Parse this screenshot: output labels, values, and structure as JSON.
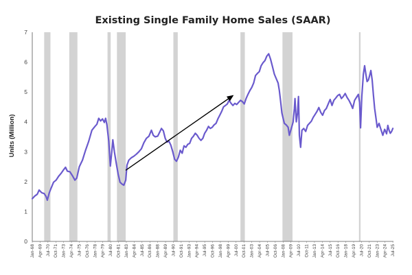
{
  "chart_data": {
    "type": "line",
    "title": "Existing Single Family Home Sales (SAAR)",
    "xlabel": "",
    "ylabel": "Units (Million)",
    "ylim": [
      0,
      7
    ],
    "yticks": [
      "0",
      "1",
      "2",
      "3",
      "4",
      "5",
      "6",
      "7"
    ],
    "xlim": [
      1968.0,
      2025.6
    ],
    "xticks": [
      {
        "label": "Jan-68",
        "t": 1968.0
      },
      {
        "label": "Apr-69",
        "t": 1969.25
      },
      {
        "label": "Jul-70",
        "t": 1970.5
      },
      {
        "label": "Oct-71",
        "t": 1971.75
      },
      {
        "label": "Jan-73",
        "t": 1973.0
      },
      {
        "label": "Apr-74",
        "t": 1974.25
      },
      {
        "label": "Jul-75",
        "t": 1975.5
      },
      {
        "label": "Oct-76",
        "t": 1976.75
      },
      {
        "label": "Jan-78",
        "t": 1978.0
      },
      {
        "label": "Apr-79",
        "t": 1979.25
      },
      {
        "label": "Jul-80",
        "t": 1980.5
      },
      {
        "label": "Oct-81",
        "t": 1981.75
      },
      {
        "label": "Jan-83",
        "t": 1983.0
      },
      {
        "label": "Apr-84",
        "t": 1984.25
      },
      {
        "label": "Jul-85",
        "t": 1985.5
      },
      {
        "label": "Oct-86",
        "t": 1986.75
      },
      {
        "label": "Jan-88",
        "t": 1988.0
      },
      {
        "label": "Apr-89",
        "t": 1989.25
      },
      {
        "label": "Jul-90",
        "t": 1990.5
      },
      {
        "label": "Oct-91",
        "t": 1991.75
      },
      {
        "label": "Jan-93",
        "t": 1993.0
      },
      {
        "label": "Apr-94",
        "t": 1994.25
      },
      {
        "label": "Jul-95",
        "t": 1995.5
      },
      {
        "label": "Oct-96",
        "t": 1996.75
      },
      {
        "label": "Jan-98",
        "t": 1998.0
      },
      {
        "label": "Apr-99",
        "t": 1999.25
      },
      {
        "label": "Jul-00",
        "t": 2000.5
      },
      {
        "label": "Oct-01",
        "t": 2001.75
      },
      {
        "label": "Jan-03",
        "t": 2003.0
      },
      {
        "label": "Apr-04",
        "t": 2004.25
      },
      {
        "label": "Jul-05",
        "t": 2005.5
      },
      {
        "label": "Oct-06",
        "t": 2006.75
      },
      {
        "label": "Jan-08",
        "t": 2008.0
      },
      {
        "label": "Apr-09",
        "t": 2009.25
      },
      {
        "label": "Jul-10",
        "t": 2010.5
      },
      {
        "label": "Oct-11",
        "t": 2011.75
      },
      {
        "label": "Jan-13",
        "t": 2013.0
      },
      {
        "label": "Apr-14",
        "t": 2014.25
      },
      {
        "label": "Jul-15",
        "t": 2015.5
      },
      {
        "label": "Oct-16",
        "t": 2016.75
      },
      {
        "label": "Jan-18",
        "t": 2018.0
      },
      {
        "label": "Apr-19",
        "t": 2019.25
      },
      {
        "label": "Jul-20",
        "t": 2020.5
      },
      {
        "label": "Oct-21",
        "t": 2021.75
      },
      {
        "label": "Jan-23",
        "t": 2023.0
      },
      {
        "label": "Apr-24",
        "t": 2024.25
      },
      {
        "label": "Jul-25",
        "t": 2025.5
      }
    ],
    "recessions": [
      {
        "start": 1969.9,
        "end": 1970.9
      },
      {
        "start": 1973.9,
        "end": 1975.2
      },
      {
        "start": 1980.0,
        "end": 1980.5
      },
      {
        "start": 1981.5,
        "end": 1982.9
      },
      {
        "start": 1990.5,
        "end": 1991.2
      },
      {
        "start": 2001.2,
        "end": 2001.9
      },
      {
        "start": 2007.9,
        "end": 2009.5
      },
      {
        "start": 2020.1,
        "end": 2020.35
      }
    ],
    "series": [
      {
        "name": "Existing Single Family Home Sales (SAAR)",
        "color": "#6a5acd",
        "points": [
          [
            1968.0,
            1.43
          ],
          [
            1968.4,
            1.52
          ],
          [
            1968.8,
            1.58
          ],
          [
            1969.1,
            1.72
          ],
          [
            1969.5,
            1.63
          ],
          [
            1969.9,
            1.6
          ],
          [
            1970.2,
            1.5
          ],
          [
            1970.4,
            1.38
          ],
          [
            1970.7,
            1.62
          ],
          [
            1971.0,
            1.78
          ],
          [
            1971.4,
            1.98
          ],
          [
            1971.8,
            2.05
          ],
          [
            1972.2,
            2.18
          ],
          [
            1972.6,
            2.28
          ],
          [
            1973.0,
            2.4
          ],
          [
            1973.3,
            2.48
          ],
          [
            1973.6,
            2.35
          ],
          [
            1974.0,
            2.33
          ],
          [
            1974.4,
            2.2
          ],
          [
            1974.8,
            2.05
          ],
          [
            1975.1,
            2.12
          ],
          [
            1975.5,
            2.5
          ],
          [
            1976.0,
            2.72
          ],
          [
            1976.5,
            3.05
          ],
          [
            1977.0,
            3.35
          ],
          [
            1977.5,
            3.72
          ],
          [
            1978.0,
            3.85
          ],
          [
            1978.3,
            3.92
          ],
          [
            1978.6,
            4.12
          ],
          [
            1978.9,
            4.03
          ],
          [
            1979.2,
            4.1
          ],
          [
            1979.5,
            3.98
          ],
          [
            1979.7,
            4.12
          ],
          [
            1979.9,
            3.9
          ],
          [
            1980.2,
            3.35
          ],
          [
            1980.45,
            2.52
          ],
          [
            1980.7,
            3.05
          ],
          [
            1980.85,
            3.4
          ],
          [
            1981.1,
            3.0
          ],
          [
            1981.4,
            2.6
          ],
          [
            1981.7,
            2.25
          ],
          [
            1982.0,
            1.98
          ],
          [
            1982.3,
            1.92
          ],
          [
            1982.6,
            1.88
          ],
          [
            1982.9,
            2.05
          ],
          [
            1983.1,
            2.55
          ],
          [
            1983.4,
            2.72
          ],
          [
            1983.8,
            2.8
          ],
          [
            1984.2,
            2.85
          ],
          [
            1984.6,
            2.92
          ],
          [
            1985.0,
            3.0
          ],
          [
            1985.4,
            3.1
          ],
          [
            1985.8,
            3.3
          ],
          [
            1986.2,
            3.45
          ],
          [
            1986.6,
            3.52
          ],
          [
            1987.0,
            3.72
          ],
          [
            1987.3,
            3.55
          ],
          [
            1987.6,
            3.5
          ],
          [
            1988.0,
            3.52
          ],
          [
            1988.3,
            3.65
          ],
          [
            1988.6,
            3.78
          ],
          [
            1988.9,
            3.7
          ],
          [
            1989.2,
            3.45
          ],
          [
            1989.5,
            3.32
          ],
          [
            1989.8,
            3.35
          ],
          [
            1990.1,
            3.22
          ],
          [
            1990.4,
            3.0
          ],
          [
            1990.7,
            2.75
          ],
          [
            1991.0,
            2.68
          ],
          [
            1991.3,
            2.82
          ],
          [
            1991.6,
            3.05
          ],
          [
            1991.9,
            2.95
          ],
          [
            1992.2,
            3.2
          ],
          [
            1992.5,
            3.15
          ],
          [
            1992.8,
            3.25
          ],
          [
            1993.1,
            3.28
          ],
          [
            1993.4,
            3.45
          ],
          [
            1993.7,
            3.52
          ],
          [
            1994.0,
            3.62
          ],
          [
            1994.3,
            3.55
          ],
          [
            1994.6,
            3.45
          ],
          [
            1994.9,
            3.38
          ],
          [
            1995.2,
            3.45
          ],
          [
            1995.5,
            3.62
          ],
          [
            1995.8,
            3.72
          ],
          [
            1996.1,
            3.85
          ],
          [
            1996.4,
            3.78
          ],
          [
            1996.7,
            3.82
          ],
          [
            1997.0,
            3.9
          ],
          [
            1997.3,
            3.95
          ],
          [
            1997.6,
            4.1
          ],
          [
            1997.9,
            4.22
          ],
          [
            1998.2,
            4.35
          ],
          [
            1998.5,
            4.5
          ],
          [
            1998.8,
            4.55
          ],
          [
            1999.1,
            4.6
          ],
          [
            1999.4,
            4.72
          ],
          [
            1999.7,
            4.62
          ],
          [
            2000.0,
            4.55
          ],
          [
            2000.3,
            4.62
          ],
          [
            2000.6,
            4.58
          ],
          [
            2000.9,
            4.65
          ],
          [
            2001.2,
            4.72
          ],
          [
            2001.5,
            4.68
          ],
          [
            2001.8,
            4.6
          ],
          [
            2002.1,
            4.78
          ],
          [
            2002.4,
            4.92
          ],
          [
            2002.7,
            5.05
          ],
          [
            2003.0,
            5.15
          ],
          [
            2003.3,
            5.3
          ],
          [
            2003.6,
            5.55
          ],
          [
            2003.9,
            5.62
          ],
          [
            2004.2,
            5.68
          ],
          [
            2004.5,
            5.88
          ],
          [
            2004.8,
            5.98
          ],
          [
            2005.1,
            6.05
          ],
          [
            2005.4,
            6.2
          ],
          [
            2005.7,
            6.28
          ],
          [
            2006.0,
            6.1
          ],
          [
            2006.3,
            5.85
          ],
          [
            2006.6,
            5.6
          ],
          [
            2006.9,
            5.45
          ],
          [
            2007.2,
            5.3
          ],
          [
            2007.4,
            5.05
          ],
          [
            2007.6,
            4.7
          ],
          [
            2007.8,
            4.3
          ],
          [
            2008.0,
            4.12
          ],
          [
            2008.2,
            3.95
          ],
          [
            2008.5,
            3.9
          ],
          [
            2008.8,
            3.82
          ],
          [
            2009.0,
            3.55
          ],
          [
            2009.2,
            3.7
          ],
          [
            2009.4,
            3.85
          ],
          [
            2009.6,
            4.0
          ],
          [
            2009.8,
            4.45
          ],
          [
            2009.9,
            4.78
          ],
          [
            2010.1,
            4.0
          ],
          [
            2010.3,
            4.3
          ],
          [
            2010.45,
            4.85
          ],
          [
            2010.6,
            3.55
          ],
          [
            2010.8,
            3.15
          ],
          [
            2011.0,
            3.72
          ],
          [
            2011.3,
            3.78
          ],
          [
            2011.6,
            3.68
          ],
          [
            2011.9,
            3.88
          ],
          [
            2012.2,
            3.95
          ],
          [
            2012.5,
            4.02
          ],
          [
            2012.8,
            4.15
          ],
          [
            2013.1,
            4.25
          ],
          [
            2013.4,
            4.35
          ],
          [
            2013.7,
            4.48
          ],
          [
            2014.0,
            4.32
          ],
          [
            2014.3,
            4.22
          ],
          [
            2014.6,
            4.38
          ],
          [
            2014.9,
            4.45
          ],
          [
            2015.2,
            4.6
          ],
          [
            2015.5,
            4.75
          ],
          [
            2015.8,
            4.55
          ],
          [
            2016.1,
            4.72
          ],
          [
            2016.4,
            4.8
          ],
          [
            2016.7,
            4.88
          ],
          [
            2017.0,
            4.92
          ],
          [
            2017.3,
            4.78
          ],
          [
            2017.6,
            4.85
          ],
          [
            2017.9,
            4.95
          ],
          [
            2018.2,
            4.82
          ],
          [
            2018.5,
            4.72
          ],
          [
            2018.8,
            4.6
          ],
          [
            2019.1,
            4.45
          ],
          [
            2019.4,
            4.72
          ],
          [
            2019.7,
            4.82
          ],
          [
            2020.0,
            4.92
          ],
          [
            2020.2,
            4.65
          ],
          [
            2020.35,
            3.8
          ],
          [
            2020.55,
            4.85
          ],
          [
            2020.8,
            5.6
          ],
          [
            2021.0,
            5.88
          ],
          [
            2021.2,
            5.6
          ],
          [
            2021.4,
            5.35
          ],
          [
            2021.6,
            5.4
          ],
          [
            2021.8,
            5.55
          ],
          [
            2022.0,
            5.72
          ],
          [
            2022.2,
            5.4
          ],
          [
            2022.4,
            4.9
          ],
          [
            2022.6,
            4.45
          ],
          [
            2022.8,
            4.15
          ],
          [
            2023.0,
            3.82
          ],
          [
            2023.3,
            3.95
          ],
          [
            2023.6,
            3.75
          ],
          [
            2023.9,
            3.55
          ],
          [
            2024.2,
            3.75
          ],
          [
            2024.5,
            3.6
          ],
          [
            2024.7,
            3.88
          ],
          [
            2024.9,
            3.72
          ],
          [
            2025.1,
            3.62
          ],
          [
            2025.3,
            3.68
          ],
          [
            2025.5,
            3.78
          ]
        ]
      }
    ],
    "annotations": [
      {
        "type": "trend-arrow",
        "from": [
          1982.9,
          2.38
        ],
        "to": [
          2000.0,
          4.88
        ],
        "color": "#000000"
      }
    ]
  }
}
